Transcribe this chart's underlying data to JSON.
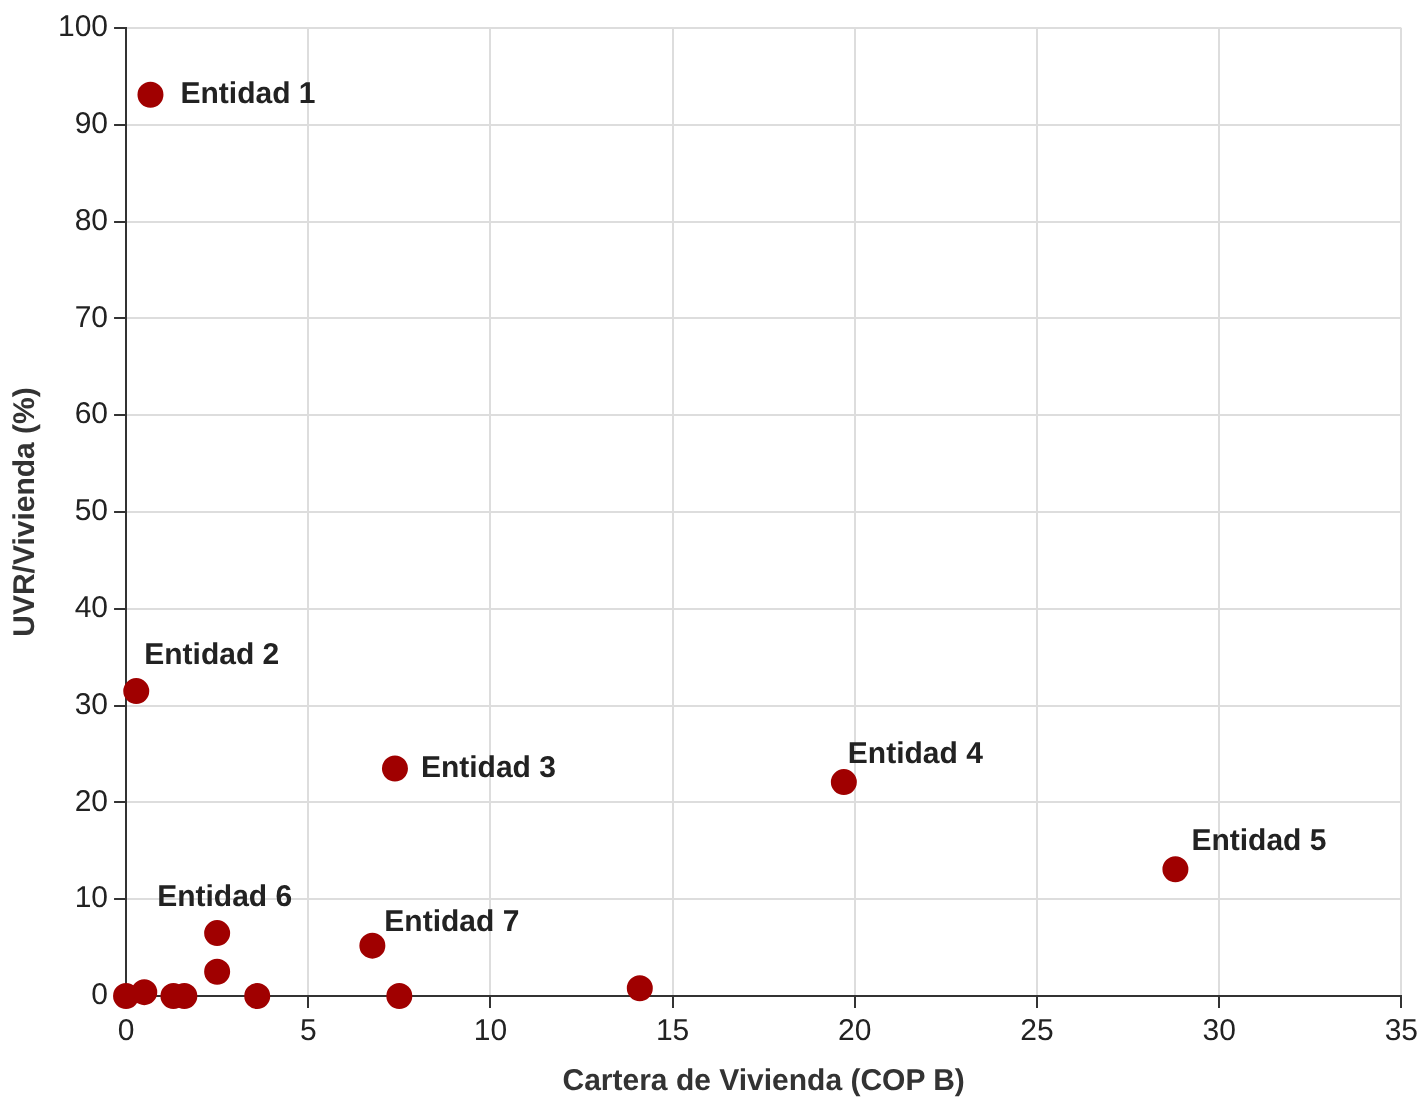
{
  "chart_data": {
    "type": "scatter",
    "xlabel": "Cartera de Vivienda (COP B)",
    "ylabel": "UVR/Vivienda (%)",
    "x": [
      0.67,
      0.28,
      7.38,
      19.7,
      28.8,
      2.5,
      6.76,
      2.5,
      3.6,
      7.5,
      14.1,
      1.3,
      1.6,
      0,
      0.5
    ],
    "values": [
      93.1,
      31.5,
      23.5,
      22.1,
      13.1,
      6.5,
      5.2,
      2.5,
      0,
      0,
      0.8,
      0,
      0,
      0,
      0.4
    ],
    "color": "#a00000",
    "marker": "circle",
    "xlim": [
      0,
      35
    ],
    "xticks": [
      0,
      5,
      10,
      15,
      20,
      25,
      30,
      35
    ],
    "ylim": [
      0,
      100
    ],
    "yticks": [
      0,
      10,
      20,
      30,
      40,
      50,
      60,
      70,
      80,
      90,
      100
    ],
    "grid": true,
    "legend": false,
    "annotations": [
      {
        "text": "Entidad 1",
        "x": 0.67,
        "y": 93.1
      },
      {
        "text": "Entidad 2",
        "x": 0.28,
        "y": 31.5
      },
      {
        "text": "Entidad 3",
        "x": 7.38,
        "y": 23.5
      },
      {
        "text": "Entidad 4",
        "x": 19.7,
        "y": 22.1
      },
      {
        "text": "Entidad 5",
        "x": 28.8,
        "y": 13.1
      },
      {
        "text": "Entidad 6",
        "x": 2.5,
        "y": 6.5
      },
      {
        "text": "Entidad 7",
        "x": 6.76,
        "y": 5.2
      }
    ]
  }
}
